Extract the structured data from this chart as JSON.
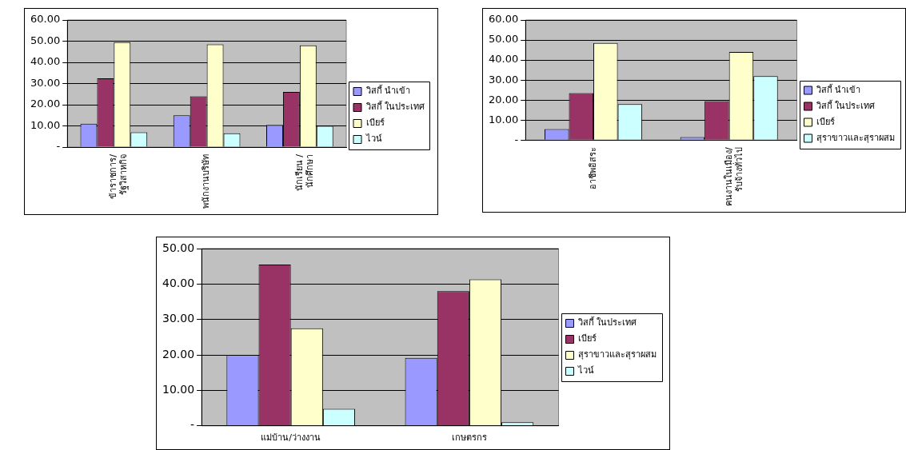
{
  "chart_data": [
    {
      "type": "bar",
      "categories": [
        "ข้าราชการ/\nรัฐวิสาหกิจ",
        "พนักงานบริษัท",
        "นักเรียน /\nนักศึกษา"
      ],
      "ylim": [
        0,
        60
      ],
      "yticks": [
        {
          "value": 0,
          "label": "-"
        },
        {
          "value": 10,
          "label": "10.00"
        },
        {
          "value": 20,
          "label": "20.00"
        },
        {
          "value": 30,
          "label": "30.00"
        },
        {
          "value": 40,
          "label": "40.00"
        },
        {
          "value": 50,
          "label": "50.00"
        },
        {
          "value": 60,
          "label": "60.00"
        }
      ],
      "grid": "y",
      "legend": "right",
      "series": [
        {
          "name": "วิสกี้ นำเข้า",
          "color": "#9999ff",
          "values": [
            11,
            15,
            10.5
          ]
        },
        {
          "name": "วิสกี้ ในประเทศ",
          "color": "#993366",
          "values": [
            32.5,
            24,
            26
          ]
        },
        {
          "name": "เบียร์",
          "color": "#ffffcc",
          "values": [
            49.5,
            48.5,
            48
          ]
        },
        {
          "name": "ไวน์",
          "color": "#ccffff",
          "values": [
            7,
            6.5,
            10
          ]
        }
      ]
    },
    {
      "type": "bar",
      "categories": [
        "อาชีพอิสระ",
        "คนงานในเมือง/\nรับจ้างทั่วไป"
      ],
      "ylim": [
        0,
        60
      ],
      "yticks": [
        {
          "value": 0,
          "label": "-"
        },
        {
          "value": 10,
          "label": "10.00"
        },
        {
          "value": 20,
          "label": "20.00"
        },
        {
          "value": 30,
          "label": "30.00"
        },
        {
          "value": 40,
          "label": "40.00"
        },
        {
          "value": 50,
          "label": "50.00"
        },
        {
          "value": 60,
          "label": "60.00"
        }
      ],
      "grid": "y",
      "legend": "right",
      "series": [
        {
          "name": "วิสกี้ นำเข้า",
          "color": "#9999ff",
          "values": [
            5.5,
            1.5
          ]
        },
        {
          "name": "วิสกี้ ในประเทศ",
          "color": "#993366",
          "values": [
            23.5,
            19.5
          ]
        },
        {
          "name": "เบียร์",
          "color": "#ffffcc",
          "values": [
            48.5,
            44
          ]
        },
        {
          "name": "สุราขาวและสุราผสม",
          "color": "#ccffff",
          "values": [
            18,
            32
          ]
        }
      ]
    },
    {
      "type": "bar",
      "categories": [
        "แม่บ้าน/ว่างงาน",
        "เกษตรกร"
      ],
      "ylim": [
        0,
        50
      ],
      "yticks": [
        {
          "value": 0,
          "label": "-"
        },
        {
          "value": 10,
          "label": "10.00"
        },
        {
          "value": 20,
          "label": "20.00"
        },
        {
          "value": 30,
          "label": "30.00"
        },
        {
          "value": 40,
          "label": "40.00"
        },
        {
          "value": 50,
          "label": "50.00"
        }
      ],
      "grid": "y",
      "legend": "right",
      "series": [
        {
          "name": "วิสกี้ ในประเทศ",
          "color": "#9999ff",
          "values": [
            20,
            19.2
          ]
        },
        {
          "name": "เบียร์",
          "color": "#993366",
          "values": [
            45.5,
            38
          ]
        },
        {
          "name": "สุราขาวและสุราผสม",
          "color": "#ffffcc",
          "values": [
            27.5,
            41.3
          ]
        },
        {
          "name": "ไวน์",
          "color": "#ccffff",
          "values": [
            4.8,
            1
          ]
        }
      ]
    }
  ]
}
